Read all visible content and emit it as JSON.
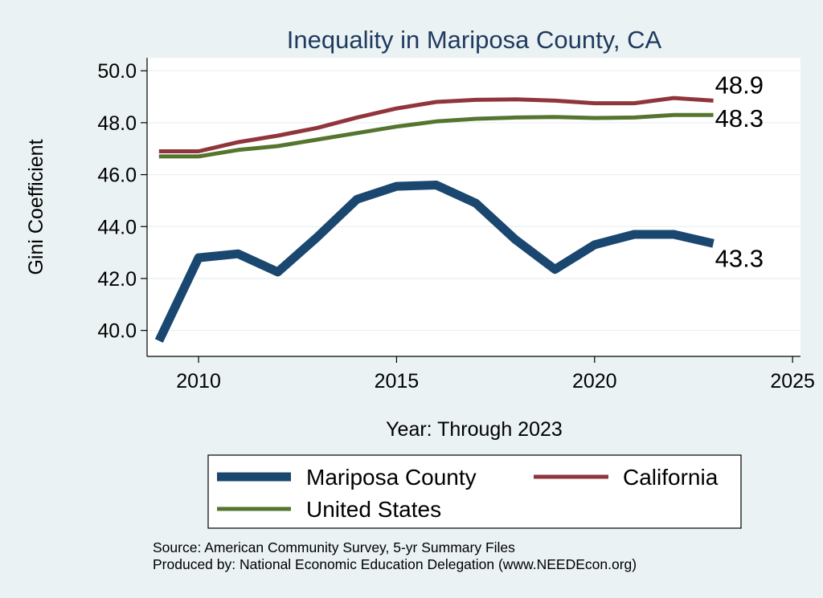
{
  "chart_data": {
    "type": "line",
    "title": "Inequality in Mariposa County, CA",
    "xlabel": "Year: Through 2023",
    "ylabel": "Gini Coefficient",
    "xlim": [
      2008.7,
      2025.2
    ],
    "ylim": [
      39.0,
      50.5
    ],
    "xticks": [
      2010,
      2015,
      2020,
      2025
    ],
    "yticks": [
      40.0,
      42.0,
      44.0,
      46.0,
      48.0,
      50.0
    ],
    "grid": true,
    "x": [
      2009,
      2010,
      2011,
      2012,
      2013,
      2014,
      2015,
      2016,
      2017,
      2018,
      2019,
      2020,
      2021,
      2022,
      2023
    ],
    "series": [
      {
        "name": "Mariposa County",
        "color": "#1a476f",
        "end_label": "43.3",
        "values": [
          39.6,
          42.8,
          42.95,
          42.25,
          43.6,
          45.05,
          45.55,
          45.6,
          44.9,
          43.5,
          42.35,
          43.3,
          43.7,
          43.7,
          43.35
        ]
      },
      {
        "name": "California",
        "color": "#90353b",
        "end_label": "48.9",
        "values": [
          46.9,
          46.9,
          47.25,
          47.5,
          47.8,
          48.2,
          48.55,
          48.8,
          48.88,
          48.9,
          48.85,
          48.75,
          48.75,
          48.95,
          48.85
        ]
      },
      {
        "name": "United States",
        "color": "#55752f",
        "end_label": "48.3",
        "values": [
          46.7,
          46.7,
          46.95,
          47.1,
          47.35,
          47.6,
          47.85,
          48.05,
          48.15,
          48.2,
          48.22,
          48.18,
          48.2,
          48.3,
          48.3
        ]
      }
    ],
    "legend": {
      "placement": "bottom",
      "items": [
        "Mariposa County",
        "California",
        "United States"
      ]
    }
  },
  "footer": {
    "source": "Source: American Community Survey, 5-yr Summary Files",
    "produced_by": "Produced by: National Economic Education Delegation (www.NEEDEcon.org)"
  },
  "colors": {
    "background": "#eaf2f3",
    "plot_background": "#ffffff",
    "title": "#1f3a5f"
  }
}
